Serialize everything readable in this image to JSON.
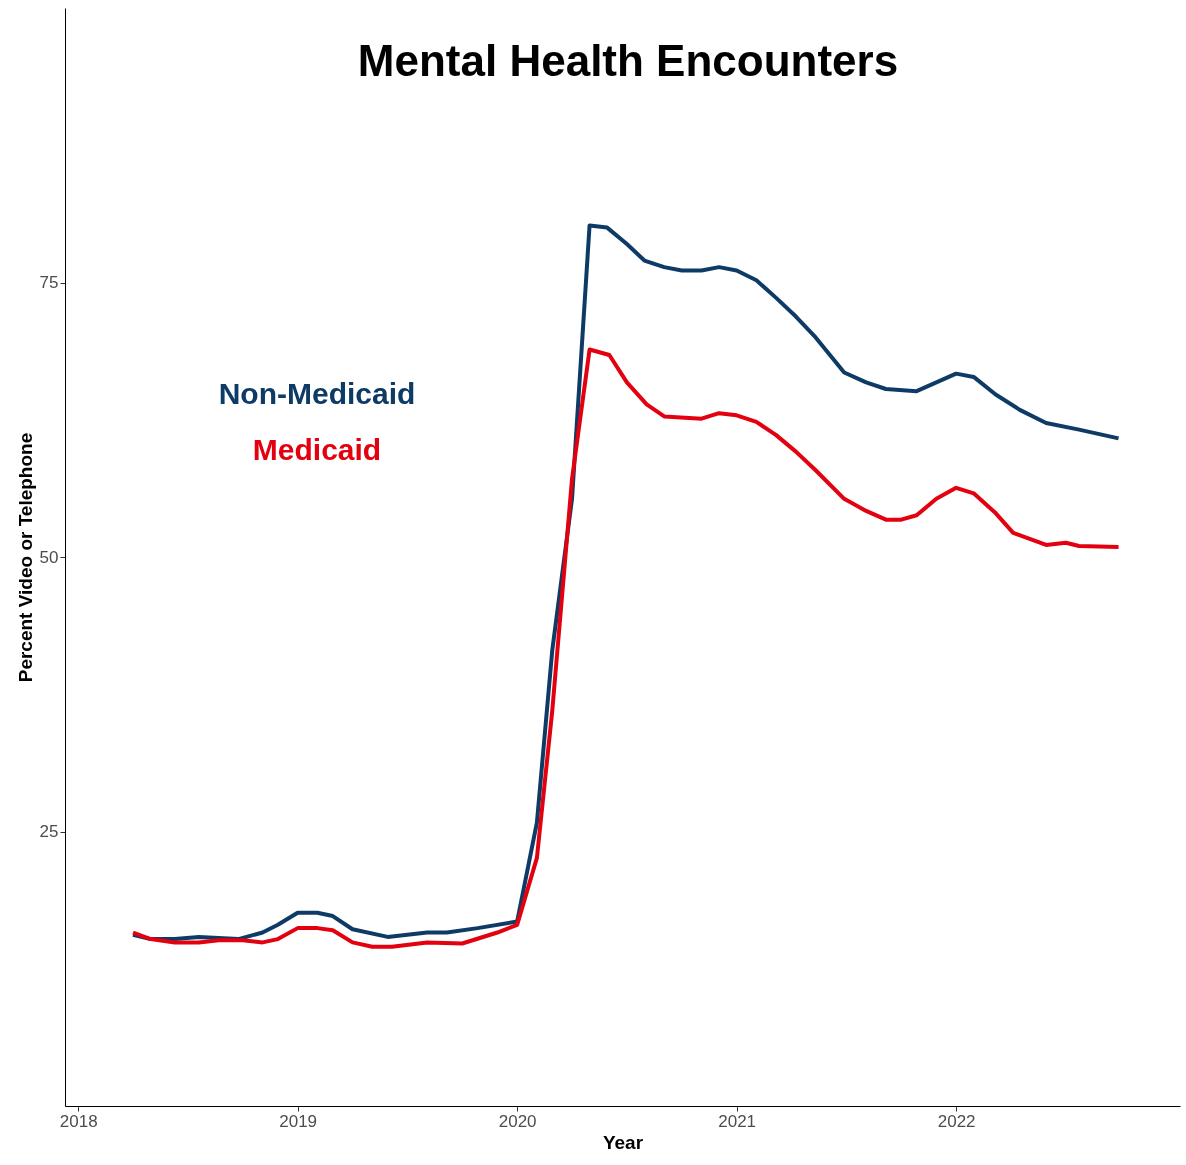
{
  "chart_data": {
    "type": "line",
    "title": "Mental Health Encounters",
    "xlabel": "Year",
    "ylabel": "Percent Video or Telephone",
    "xlim": [
      2017.94,
      2023.02
    ],
    "xticks": [
      2018,
      2019,
      2020,
      2021,
      2022
    ],
    "ylim": [
      0,
      100
    ],
    "yticks": [
      25,
      50,
      75
    ],
    "grid": false,
    "line_style": "solid",
    "series": [
      {
        "name": "Non-Medicaid",
        "color": "#0e3b66",
        "x": [
          2018.25,
          2018.33,
          2018.44,
          2018.55,
          2018.73,
          2018.84,
          2018.91,
          2019.0,
          2019.09,
          2019.16,
          2019.25,
          2019.41,
          2019.59,
          2019.68,
          2019.82,
          2020.0,
          2020.09,
          2020.16,
          2020.25,
          2020.33,
          2020.41,
          2020.5,
          2020.58,
          2020.67,
          2020.75,
          2020.84,
          2020.92,
          2021.0,
          2021.09,
          2021.18,
          2021.27,
          2021.36,
          2021.49,
          2021.59,
          2021.68,
          2021.82,
          2021.91,
          2022.0,
          2022.08,
          2022.18,
          2022.29,
          2022.41,
          2022.56,
          2022.74
        ],
        "values": [
          15.6,
          15.2,
          15.2,
          15.4,
          15.2,
          15.8,
          16.5,
          17.6,
          17.6,
          17.3,
          16.1,
          15.4,
          15.8,
          15.8,
          16.2,
          16.8,
          25.8,
          41.5,
          55.3,
          80.2,
          80.0,
          78.5,
          77.0,
          76.4,
          76.1,
          76.1,
          76.4,
          76.1,
          75.2,
          73.6,
          71.9,
          70.0,
          66.8,
          65.9,
          65.3,
          65.1,
          65.9,
          66.7,
          66.4,
          64.8,
          63.4,
          62.2,
          61.6,
          60.8
        ]
      },
      {
        "name": "Medicaid",
        "color": "#e3000f",
        "x": [
          2018.25,
          2018.33,
          2018.44,
          2018.55,
          2018.64,
          2018.75,
          2018.84,
          2018.91,
          2019.0,
          2019.09,
          2019.16,
          2019.25,
          2019.34,
          2019.43,
          2019.59,
          2019.75,
          2019.91,
          2020.0,
          2020.09,
          2020.16,
          2020.25,
          2020.33,
          2020.42,
          2020.5,
          2020.59,
          2020.67,
          2020.84,
          2020.92,
          2021.0,
          2021.09,
          2021.18,
          2021.27,
          2021.36,
          2021.49,
          2021.59,
          2021.68,
          2021.75,
          2021.82,
          2021.91,
          2022.0,
          2022.08,
          2022.18,
          2022.26,
          2022.41,
          2022.5,
          2022.56,
          2022.74
        ],
        "values": [
          15.8,
          15.2,
          14.9,
          14.9,
          15.1,
          15.1,
          14.9,
          15.2,
          16.2,
          16.2,
          16.0,
          14.9,
          14.5,
          14.5,
          14.9,
          14.8,
          15.8,
          16.5,
          22.6,
          36.0,
          57.1,
          68.9,
          68.4,
          65.9,
          63.9,
          62.8,
          62.6,
          63.1,
          62.9,
          62.3,
          61.1,
          59.6,
          57.9,
          55.3,
          54.2,
          53.4,
          53.4,
          53.8,
          55.3,
          56.3,
          55.8,
          54.0,
          52.2,
          51.1,
          51.3,
          51.0,
          50.9
        ]
      }
    ]
  }
}
